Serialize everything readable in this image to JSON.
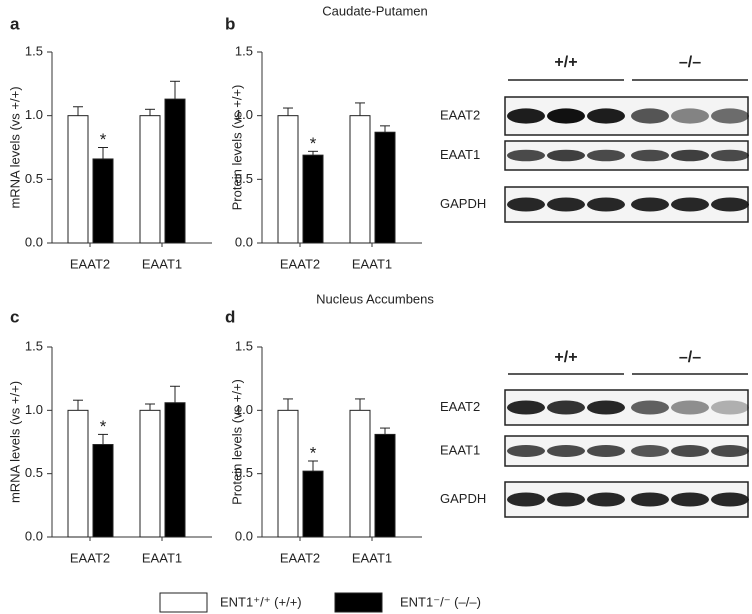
{
  "chart_data": [
    {
      "type": "bar",
      "panel": "a",
      "ylabel": "mRNA levels (vs +/+)",
      "categories": [
        "EAAT2",
        "EAAT1"
      ],
      "series": [
        {
          "name": "ENT1⁺/⁺ (+/+)",
          "color": "#ffffff",
          "values": [
            1.0,
            1.0
          ],
          "errors": [
            0.07,
            0.05
          ]
        },
        {
          "name": "ENT1⁻/⁻ (–/–)",
          "color": "#000000",
          "values": [
            0.66,
            1.13
          ],
          "errors": [
            0.09,
            0.14
          ]
        }
      ],
      "annotations": [
        "*"
      ],
      "ylim": [
        0,
        1.5
      ],
      "yticks": [
        {
          "value": 0,
          "label": "0.0"
        },
        {
          "value": 0.5,
          "label": "0.5"
        },
        {
          "value": 1,
          "label": "1.0"
        },
        {
          "value": 1.5,
          "label": "1.5"
        }
      ]
    },
    {
      "type": "bar",
      "panel": "b",
      "title": "Caudate-Putamen",
      "ylabel": "Protein levels (vs +/+)",
      "categories": [
        "EAAT2",
        "EAAT1"
      ],
      "series": [
        {
          "name": "ENT1⁺/⁺ (+/+)",
          "color": "#ffffff",
          "values": [
            1.0,
            1.0
          ],
          "errors": [
            0.06,
            0.1
          ]
        },
        {
          "name": "ENT1⁻/⁻ (–/–)",
          "color": "#000000",
          "values": [
            0.69,
            0.87
          ],
          "errors": [
            0.03,
            0.05
          ]
        }
      ],
      "annotations": [
        "*"
      ],
      "ylim": [
        0,
        1.5
      ],
      "yticks": [
        {
          "value": 0,
          "label": "0.0"
        },
        {
          "value": 0.5,
          "label": "0.5"
        },
        {
          "value": 1,
          "label": "1.0"
        },
        {
          "value": 1.5,
          "label": "1.5"
        }
      ]
    },
    {
      "type": "bar",
      "panel": "c",
      "ylabel": "mRNA levels (vs +/+)",
      "categories": [
        "EAAT2",
        "EAAT1"
      ],
      "series": [
        {
          "name": "ENT1⁺/⁺ (+/+)",
          "color": "#ffffff",
          "values": [
            1.0,
            1.0
          ],
          "errors": [
            0.08,
            0.05
          ]
        },
        {
          "name": "ENT1⁻/⁻ (–/–)",
          "color": "#000000",
          "values": [
            0.73,
            1.06
          ],
          "errors": [
            0.08,
            0.13
          ]
        }
      ],
      "annotations": [
        "*"
      ],
      "ylim": [
        0,
        1.5
      ],
      "yticks": [
        {
          "value": 0,
          "label": "0.0"
        },
        {
          "value": 0.5,
          "label": "0.5"
        },
        {
          "value": 1,
          "label": "1.0"
        },
        {
          "value": 1.5,
          "label": "1.5"
        }
      ]
    },
    {
      "type": "bar",
      "panel": "d",
      "title": "Nucleus Accumbens",
      "ylabel": "Protein levels (vs +/+)",
      "categories": [
        "EAAT2",
        "EAAT1"
      ],
      "series": [
        {
          "name": "ENT1⁺/⁺ (+/+)",
          "color": "#ffffff",
          "values": [
            1.0,
            1.0
          ],
          "errors": [
            0.09,
            0.09
          ]
        },
        {
          "name": "ENT1⁻/⁻ (–/–)",
          "color": "#000000",
          "values": [
            0.52,
            0.81
          ],
          "errors": [
            0.08,
            0.05
          ]
        }
      ],
      "annotations": [
        "*"
      ],
      "ylim": [
        0,
        1.5
      ],
      "yticks": [
        {
          "value": 0,
          "label": "0.0"
        },
        {
          "value": 0.5,
          "label": "0.5"
        },
        {
          "value": 1,
          "label": "1.0"
        },
        {
          "value": 1.5,
          "label": "1.5"
        }
      ]
    }
  ],
  "blots": [
    {
      "groups": [
        "+/+",
        "–/–"
      ],
      "rows": [
        "EAAT2",
        "EAAT1",
        "GAPDH"
      ]
    },
    {
      "groups": [
        "+/+",
        "–/–"
      ],
      "rows": [
        "EAAT2",
        "EAAT1",
        "GAPDH"
      ]
    }
  ]
}
